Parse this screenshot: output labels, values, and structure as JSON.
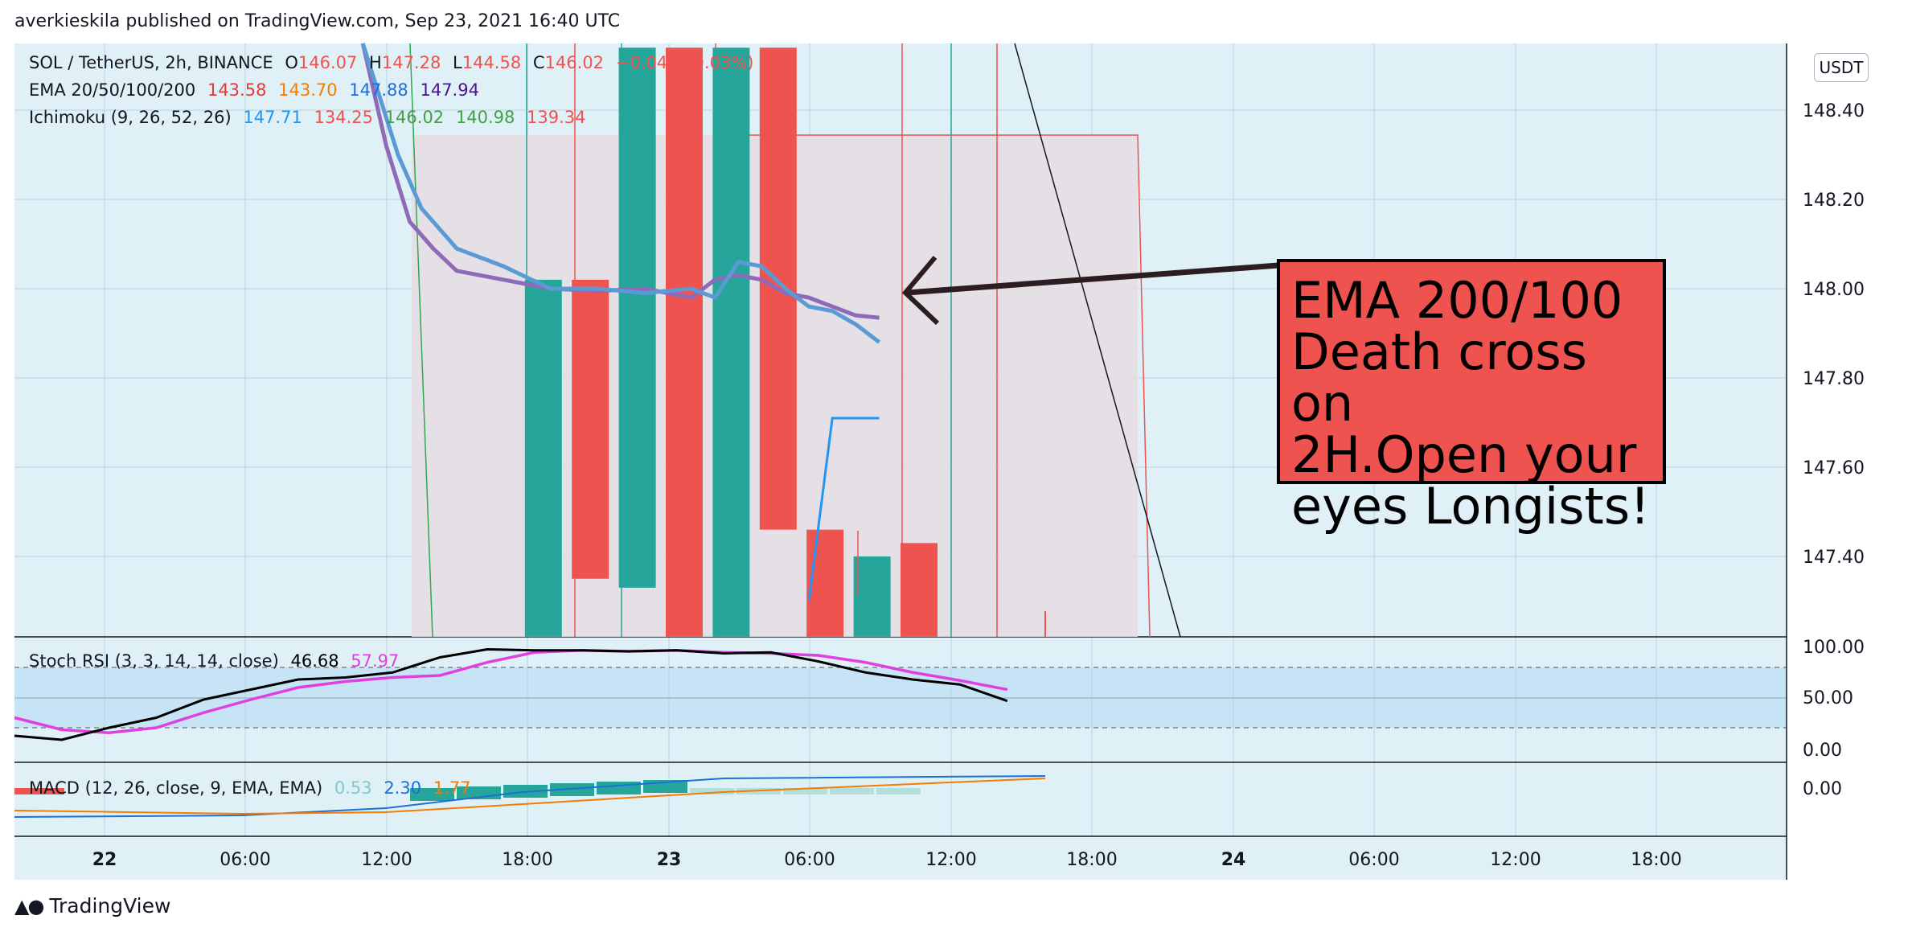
{
  "header": {
    "published": "averkieskila published on TradingView.com, Sep 23, 2021 16:40 UTC"
  },
  "footer": {
    "brand": "TradingView"
  },
  "price_axis": {
    "unit": "USDT",
    "ticks": [
      "148.40",
      "148.20",
      "148.00",
      "147.80",
      "147.60",
      "147.40"
    ]
  },
  "stoch_axis": {
    "ticks": [
      "100.00",
      "50.00",
      "0.00"
    ]
  },
  "macd_axis": {
    "ticks": [
      "0.00"
    ]
  },
  "time_axis": {
    "ticks": [
      "22",
      "06:00",
      "12:00",
      "18:00",
      "23",
      "06:00",
      "12:00",
      "18:00",
      "24",
      "06:00",
      "12:00",
      "18:00"
    ]
  },
  "legend": {
    "symbol": "SOL / TetherUS, 2h, BINANCE",
    "o_label": "O",
    "o_value": "146.07",
    "h_label": "H",
    "h_value": "147.28",
    "l_label": "L",
    "l_value": "144.58",
    "c_label": "C",
    "c_value": "146.02",
    "change": "−0.04 (−0.03%)",
    "ema_label": "EMA 20/50/100/200",
    "ema_values": [
      "143.58",
      "143.70",
      "147.88",
      "147.94"
    ],
    "ichimoku_label": "Ichimoku (9, 26, 52, 26)",
    "ichimoku_values": [
      "147.71",
      "134.25",
      "146.02",
      "140.98",
      "139.34"
    ],
    "stoch_label": "Stoch RSI (3, 3, 14, 14, close)",
    "stoch_values": [
      "46.68",
      "57.97"
    ],
    "macd_label": "MACD (12, 26, close, 9, EMA, EMA)",
    "macd_values": [
      "0.53",
      "2.30",
      "1.77"
    ]
  },
  "annotation": {
    "line1": "EMA 200/100",
    "line2": "Death cross on",
    "line3": "2H.Open your",
    "line4": "eyes Longists!"
  },
  "colors": {
    "bg": "#dff0f7",
    "up": "#26a69a",
    "down": "#ef5350",
    "ema100": "#5b9bd5",
    "ema200": "#8e6bb8",
    "k": "#000000",
    "d": "#e040e0"
  },
  "chart_data": {
    "type": "candlestick",
    "ylim": [
      147.22,
      148.54
    ],
    "x_times": [
      "22 00:00",
      "22 06:00",
      "22 12:00",
      "22 18:00",
      "23 00:00",
      "23 06:00",
      "23 12:00",
      "23 18:00",
      "24 00:00",
      "24 06:00",
      "24 12:00",
      "24 18:00"
    ],
    "candles": [
      {
        "t": 19,
        "o": 147.22,
        "c": 148.02
      },
      {
        "t": 21,
        "o": 148.02,
        "c": 147.35
      },
      {
        "t": 23,
        "o": 147.33,
        "c": 148.54
      },
      {
        "t": 25,
        "o": 148.54,
        "c": 147.22
      },
      {
        "t": 27,
        "o": 147.22,
        "c": 148.54
      },
      {
        "t": 29,
        "o": 148.54,
        "c": 147.46
      },
      {
        "t": 31,
        "o": 147.46,
        "c": 147.22
      },
      {
        "t": 33,
        "o": 147.22,
        "c": 147.4
      },
      {
        "t": 35,
        "o": 147.43,
        "c": 147.22
      }
    ],
    "ema100": [
      [
        11,
        148.6
      ],
      [
        12.5,
        148.3
      ],
      [
        13.5,
        148.18
      ],
      [
        15,
        148.09
      ],
      [
        17,
        148.05
      ],
      [
        19,
        148.0
      ],
      [
        21,
        148.0
      ],
      [
        23,
        147.99
      ],
      [
        25,
        148.0
      ],
      [
        26,
        147.98
      ],
      [
        27,
        148.06
      ],
      [
        28,
        148.05
      ],
      [
        29,
        148.0
      ],
      [
        30,
        147.96
      ],
      [
        31,
        147.95
      ],
      [
        32,
        147.92
      ],
      [
        33,
        147.88
      ]
    ],
    "ema200": [
      [
        11,
        148.55
      ],
      [
        12,
        148.32
      ],
      [
        13,
        148.15
      ],
      [
        14,
        148.09
      ],
      [
        15,
        148.04
      ],
      [
        17,
        148.02
      ],
      [
        19,
        148.0
      ],
      [
        21,
        147.995
      ],
      [
        23,
        148.0
      ],
      [
        25,
        147.98
      ],
      [
        26,
        148.02
      ],
      [
        27,
        148.03
      ],
      [
        28,
        148.02
      ],
      [
        29,
        147.99
      ],
      [
        30,
        147.98
      ],
      [
        31,
        147.96
      ],
      [
        32,
        147.94
      ],
      [
        33,
        147.935
      ]
    ],
    "ichimoku_blue": [
      [
        30,
        147.3
      ],
      [
        31,
        147.71
      ],
      [
        33,
        147.71
      ]
    ],
    "stoch_k": [
      [
        0,
        12
      ],
      [
        1,
        8
      ],
      [
        2,
        20
      ],
      [
        3,
        30
      ],
      [
        4,
        48
      ],
      [
        5,
        58
      ],
      [
        6,
        68
      ],
      [
        7,
        70
      ],
      [
        8,
        75
      ],
      [
        9,
        90
      ],
      [
        10,
        98
      ],
      [
        11,
        97
      ],
      [
        12,
        97
      ],
      [
        13,
        96
      ],
      [
        14,
        97
      ],
      [
        15,
        94
      ],
      [
        16,
        95
      ],
      [
        17,
        86
      ],
      [
        18,
        75
      ],
      [
        19,
        68
      ],
      [
        20,
        63
      ],
      [
        21,
        46.68
      ]
    ],
    "stoch_d": [
      [
        0,
        30
      ],
      [
        1,
        18
      ],
      [
        2,
        15
      ],
      [
        3,
        20
      ],
      [
        4,
        35
      ],
      [
        5,
        48
      ],
      [
        6,
        60
      ],
      [
        7,
        66
      ],
      [
        8,
        70
      ],
      [
        9,
        72
      ],
      [
        10,
        85
      ],
      [
        11,
        95
      ],
      [
        12,
        97
      ],
      [
        13,
        96
      ],
      [
        14,
        97
      ],
      [
        15,
        95
      ],
      [
        16,
        94
      ],
      [
        17,
        92
      ],
      [
        18,
        85
      ],
      [
        19,
        75
      ],
      [
        20,
        67
      ],
      [
        21,
        57.97
      ]
    ]
  }
}
